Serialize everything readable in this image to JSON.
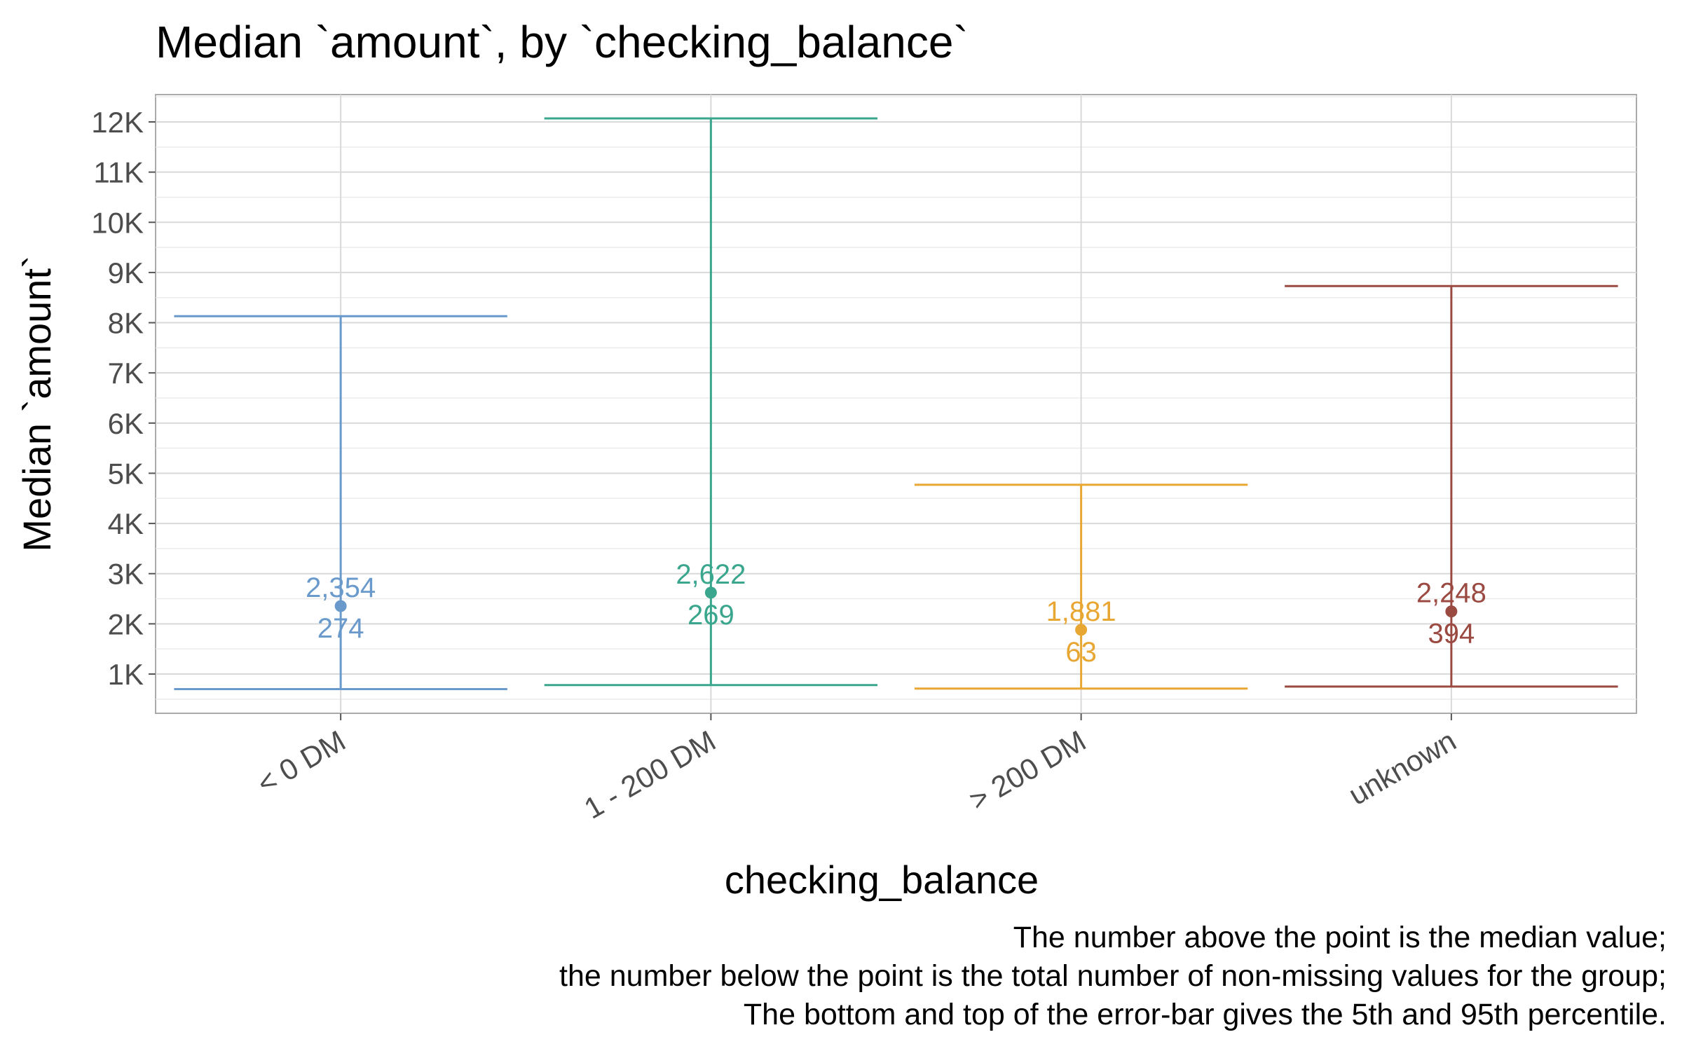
{
  "chart_data": {
    "type": "errorbar",
    "title": "Median `amount`, by `checking_balance`",
    "xlabel": "checking_balance",
    "ylabel": "Median `amount`",
    "categories": [
      "< 0 DM",
      "1 - 200 DM",
      "> 200 DM",
      "unknown"
    ],
    "median": [
      2354,
      2622,
      1881,
      2248
    ],
    "median_labels": [
      "2,354",
      "2,622",
      "1,881",
      "2,248"
    ],
    "n": [
      274,
      269,
      63,
      394
    ],
    "n_labels": [
      "274",
      "269",
      "63",
      "394"
    ],
    "p5": [
      700,
      780,
      710,
      750
    ],
    "p95": [
      8130,
      12070,
      4770,
      8730
    ],
    "colors": [
      "#6a9acb",
      "#3aa68d",
      "#e8a633",
      "#9b4a42"
    ],
    "ylim": [
      0,
      12600
    ],
    "yticks": [
      1000,
      2000,
      3000,
      4000,
      5000,
      6000,
      7000,
      8000,
      9000,
      10000,
      11000,
      12000
    ],
    "ytick_labels": [
      "1K",
      "2K",
      "3K",
      "4K",
      "5K",
      "6K",
      "7K",
      "8K",
      "9K",
      "10K",
      "11K",
      "12K"
    ],
    "grid": true,
    "caption": [
      "The number above the point is the median value;",
      "the number below the point is the total number of non-missing values for the group;",
      "The bottom and top of the error-bar gives the 5th and 95th percentile."
    ]
  }
}
